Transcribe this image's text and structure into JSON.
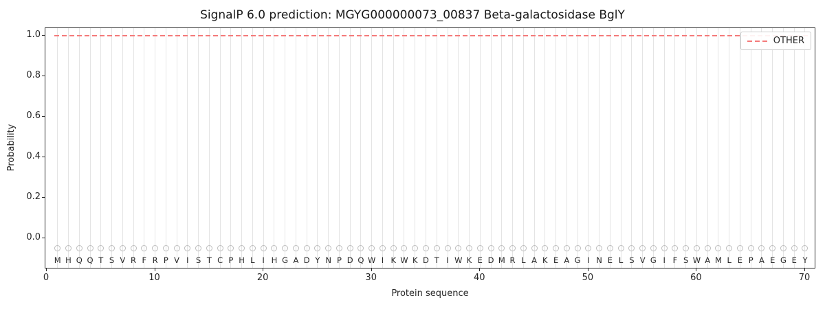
{
  "title": "SignalP 6.0 prediction: MGYG000000073_00837 Beta-galactosidase BglY",
  "axes": {
    "xlabel": "Protein sequence",
    "ylabel": "Probability",
    "ytick_labels": [
      "0.0",
      "0.2",
      "0.4",
      "0.6",
      "0.8",
      "1.0"
    ],
    "ytick_values": [
      0.0,
      0.2,
      0.4,
      0.6,
      0.8,
      1.0
    ],
    "xtick_labels": [
      "0",
      "10",
      "20",
      "30",
      "40",
      "50",
      "60",
      "70"
    ],
    "xtick_values": [
      0,
      10,
      20,
      30,
      40,
      50,
      60,
      70
    ]
  },
  "legend": {
    "entries": [
      {
        "label": "OTHER",
        "color": "#f47a7a",
        "linestyle": "dashed"
      }
    ],
    "position": "upper right"
  },
  "colors": {
    "other_line": "#f47a7a",
    "gridline": "#e4e4e4",
    "marker_stroke": "#bdbdbd",
    "text": "#262626"
  },
  "chart_data": {
    "type": "line",
    "title": "SignalP 6.0 prediction: MGYG000000073_00837 Beta-galactosidase BglY",
    "xlabel": "Protein sequence",
    "ylabel": "Probability",
    "xlim": [
      0,
      71
    ],
    "ylim": [
      -0.15,
      1.05
    ],
    "grid": "vertical-per-residue",
    "legend_position": "upper right",
    "sequence": "MHQQTSVRFRPVISTCPHLIHGADYNPDQWIKWKDTIWKEDMRLAKEAGINELSVGIFSWAMLEPAEGEY",
    "series": [
      {
        "name": "OTHER",
        "color": "#f47a7a",
        "linestyle": "dashed",
        "x_start": 1,
        "x_step": 1,
        "values": [
          1.0,
          1.0,
          1.0,
          1.0,
          1.0,
          1.0,
          1.0,
          1.0,
          1.0,
          1.0,
          1.0,
          1.0,
          1.0,
          1.0,
          1.0,
          1.0,
          1.0,
          1.0,
          1.0,
          1.0,
          1.0,
          1.0,
          1.0,
          1.0,
          1.0,
          1.0,
          1.0,
          1.0,
          1.0,
          1.0,
          1.0,
          1.0,
          1.0,
          1.0,
          1.0,
          1.0,
          1.0,
          1.0,
          1.0,
          1.0,
          1.0,
          1.0,
          1.0,
          1.0,
          1.0,
          1.0,
          1.0,
          1.0,
          1.0,
          1.0,
          1.0,
          1.0,
          1.0,
          1.0,
          1.0,
          1.0,
          1.0,
          1.0,
          1.0,
          1.0,
          1.0,
          1.0,
          1.0,
          1.0,
          1.0,
          1.0,
          1.0,
          1.0,
          1.0,
          1.0
        ]
      }
    ],
    "residue_markers": {
      "shape": "open-circle",
      "y_value": -0.05
    }
  }
}
